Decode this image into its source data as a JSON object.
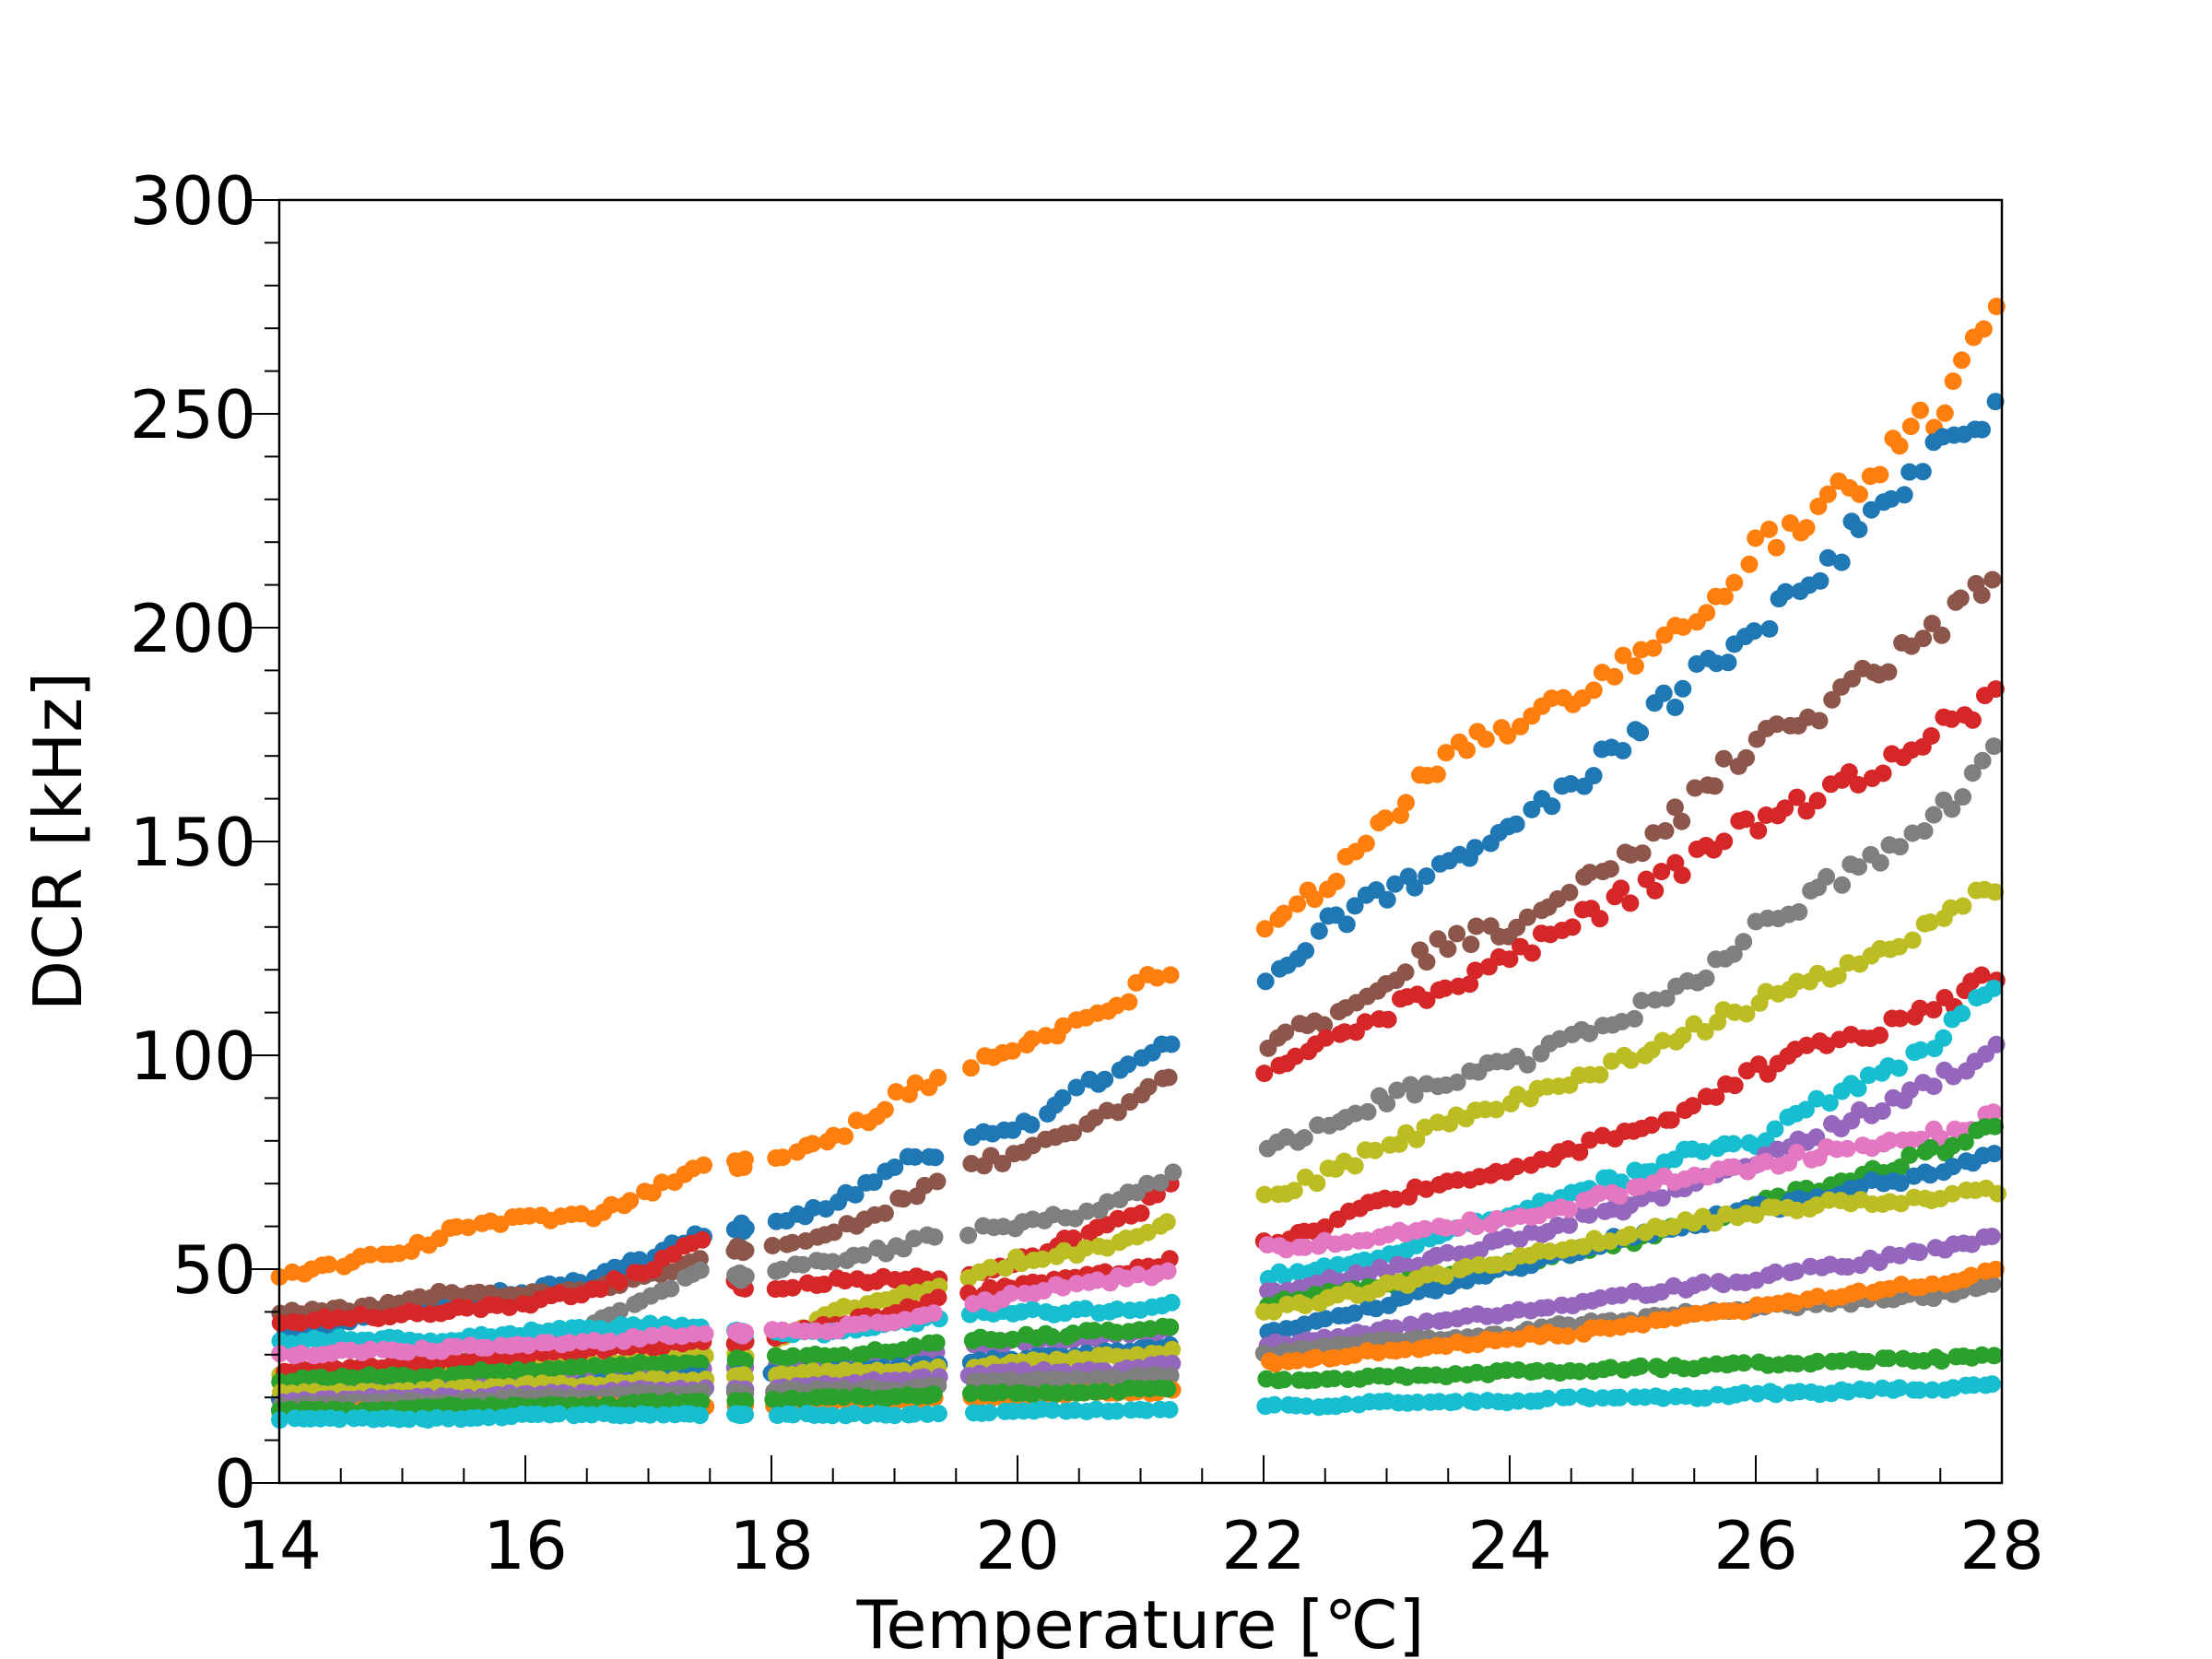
{
  "chart_data": {
    "type": "scatter",
    "title": "",
    "xlabel": "Temperature [℃]",
    "ylabel": "DCR [kHz]",
    "xlim": [
      14,
      28
    ],
    "ylim": [
      0,
      300
    ],
    "xticks": [
      "14",
      "16",
      "18",
      "20",
      "22",
      "24",
      "26",
      "28"
    ],
    "yticks": [
      "0",
      "50",
      "100",
      "150",
      "200",
      "250",
      "300"
    ],
    "x_minor_step": 0.5,
    "y_minor_step": 10,
    "grid": false,
    "legend": "none",
    "temperature_groups": [
      [
        14.0,
        14.8
      ],
      [
        14.8,
        15.6
      ],
      [
        15.6,
        16.6
      ],
      [
        16.6,
        17.5
      ],
      [
        17.7,
        17.8
      ],
      [
        18.0,
        19.4
      ],
      [
        19.6,
        21.3
      ],
      [
        22.0,
        23.8
      ],
      [
        23.8,
        28.0
      ]
    ],
    "series": [
      {
        "color": "#ff7f0e",
        "x": [
          14.1,
          15.0,
          15.5,
          16.0,
          16.5,
          17.0,
          17.4,
          18.0,
          18.5,
          19.0,
          19.4,
          20.0,
          20.5,
          21.0,
          21.3,
          22.0,
          22.5,
          23.0,
          23.5,
          24.0,
          24.5,
          25.0,
          25.5,
          26.0,
          26.5,
          27.0,
          27.5,
          28.0
        ],
        "y": [
          49,
          54,
          60,
          62,
          62,
          68,
          73,
          76,
          80,
          90,
          95,
          102,
          108,
          116,
          122,
          131,
          140,
          155,
          170,
          176,
          185,
          193,
          203,
          218,
          228,
          238,
          252,
          276
        ]
      },
      {
        "color": "#1f77b4",
        "x": [
          14.1,
          14.8,
          15.2,
          15.6,
          16.0,
          16.5,
          17.0,
          17.4,
          17.8,
          18.5,
          19.0,
          19.4,
          20.0,
          20.5,
          21.0,
          21.3,
          22.0,
          22.5,
          23.0,
          23.5,
          24.0,
          24.5,
          25.0,
          25.5,
          26.0,
          26.5,
          27.0,
          27.5,
          28.0
        ],
        "y": [
          35,
          39,
          42,
          44,
          45,
          48,
          53,
          58,
          60,
          65,
          74,
          78,
          83,
          92,
          100,
          105,
          117,
          130,
          138,
          144,
          152,
          163,
          175,
          188,
          199,
          213,
          228,
          241,
          253
        ]
      },
      {
        "color": "#8c564b",
        "x": [
          14.1,
          14.8,
          15.2,
          15.6,
          16.0,
          16.5,
          17.0,
          17.4,
          17.8,
          18.5,
          19.0,
          19.4,
          20.0,
          20.5,
          21.0,
          21.3,
          22.0,
          22.5,
          23.0,
          23.5,
          24.0,
          24.5,
          25.0,
          25.5,
          26.0,
          26.5,
          27.0,
          27.5,
          28.0
        ],
        "y": [
          40,
          41,
          44,
          44,
          44,
          45,
          48,
          52,
          55,
          58,
          65,
          72,
          77,
          82,
          90,
          95,
          103,
          108,
          118,
          127,
          130,
          138,
          146,
          160,
          174,
          181,
          191,
          201,
          213
        ]
      },
      {
        "color": "#d62728",
        "x": [
          14.1,
          14.8,
          15.2,
          15.6,
          16.0,
          16.5,
          17.0,
          17.4,
          17.8,
          18.5,
          19.0,
          19.4,
          20.0,
          20.5,
          21.0,
          21.3,
          22.0,
          22.5,
          23.0,
          23.5,
          24.0,
          24.5,
          25.0,
          25.5,
          26.0,
          26.5,
          27.0,
          27.5,
          28.0
        ],
        "y": [
          38,
          39,
          40,
          41,
          42,
          45,
          50,
          57,
          45,
          47,
          48,
          48,
          52,
          58,
          64,
          72,
          96,
          103,
          110,
          116,
          123,
          131,
          138,
          146,
          155,
          160,
          168,
          176,
          186
        ]
      },
      {
        "color": "#7f7f7f",
        "x": [
          14.1,
          14.8,
          15.2,
          15.6,
          16.0,
          16.5,
          17.0,
          17.4,
          17.8,
          18.5,
          19.0,
          19.4,
          20.0,
          20.5,
          21.0,
          21.3,
          22.0,
          22.5,
          23.0,
          23.5,
          24.0,
          24.5,
          25.0,
          25.5,
          26.0,
          26.5,
          27.0,
          27.5,
          28.0
        ],
        "y": [
          25,
          27,
          28,
          30,
          33,
          37,
          43,
          50,
          48,
          52,
          55,
          58,
          60,
          63,
          68,
          74,
          78,
          83,
          90,
          94,
          98,
          103,
          110,
          118,
          129,
          138,
          147,
          157,
          172
        ]
      },
      {
        "color": "#bcbd22",
        "x": [
          14.1,
          14.8,
          15.2,
          15.6,
          16.0,
          16.5,
          17.0,
          17.4,
          17.8,
          18.5,
          19.0,
          19.4,
          20.0,
          20.5,
          21.0,
          21.3,
          22.0,
          22.5,
          23.0,
          23.5,
          24.0,
          24.5,
          25.0,
          25.5,
          26.0,
          26.5,
          27.0,
          27.5,
          28.0
        ],
        "y": [
          25,
          26,
          27,
          27,
          27,
          28,
          29,
          30,
          30,
          40,
          44,
          46,
          52,
          54,
          58,
          62,
          67,
          72,
          79,
          84,
          89,
          94,
          100,
          106,
          112,
          118,
          124,
          131,
          140
        ]
      },
      {
        "color": "#d62728",
        "x": [
          14.1,
          14.8,
          15.2,
          15.6,
          16.0,
          16.5,
          17.0,
          17.4,
          17.8,
          18.5,
          19.0,
          19.4,
          20.0,
          20.5,
          21.0,
          21.3,
          22.0,
          22.5,
          23.0,
          23.5,
          24.0,
          24.5,
          25.0,
          25.5,
          26.0,
          26.5,
          27.0,
          27.5,
          28.0
        ],
        "y": [
          26,
          27,
          28,
          29,
          30,
          31,
          32,
          33,
          33,
          37,
          40,
          43,
          46,
          48,
          50,
          52,
          56,
          60,
          67,
          70,
          74,
          78,
          82,
          88,
          96,
          102,
          106,
          111,
          120
        ]
      },
      {
        "color": "#17becf",
        "x": [
          14.1,
          14.8,
          15.2,
          15.6,
          16.0,
          16.5,
          17.0,
          17.4,
          17.8,
          18.5,
          19.0,
          19.4,
          20.0,
          20.5,
          21.0,
          21.3,
          22.0,
          22.5,
          23.0,
          23.5,
          24.0,
          24.5,
          25.0,
          25.5,
          26.0,
          26.5,
          27.0,
          27.5,
          28.0
        ],
        "y": [
          33,
          34,
          33,
          34,
          35,
          36,
          37,
          36,
          35,
          35,
          37,
          39,
          40,
          40,
          41,
          42,
          48,
          50,
          53,
          58,
          63,
          68,
          72,
          78,
          79,
          89,
          96,
          104,
          118
        ]
      },
      {
        "color": "#9467bd",
        "x": [
          14.1,
          14.8,
          15.2,
          15.6,
          16.0,
          16.5,
          17.0,
          17.4,
          17.8,
          18.5,
          19.0,
          19.4,
          20.0,
          20.5,
          21.0,
          21.3,
          22.0,
          22.5,
          23.0,
          23.5,
          24.0,
          24.5,
          25.0,
          25.5,
          26.0,
          26.5,
          27.0,
          27.5,
          28.0
        ],
        "y": [
          22,
          23,
          23,
          24,
          24,
          25,
          26,
          27,
          27,
          28,
          30,
          31,
          33,
          34,
          35,
          36,
          45,
          47,
          50,
          53,
          57,
          61,
          65,
          70,
          75,
          82,
          88,
          95,
          102
        ]
      },
      {
        "color": "#e377c2",
        "x": [
          14.1,
          14.8,
          15.2,
          15.6,
          16.0,
          16.5,
          17.0,
          17.4,
          17.8,
          18.5,
          19.0,
          19.4,
          20.0,
          20.5,
          21.0,
          21.3,
          22.0,
          22.5,
          23.0,
          23.5,
          24.0,
          24.5,
          25.0,
          25.5,
          26.0,
          26.5,
          27.0,
          27.5,
          28.0
        ],
        "y": [
          30,
          31,
          31,
          32,
          32,
          33,
          34,
          35,
          35,
          36,
          38,
          40,
          44,
          47,
          48,
          50,
          55,
          56,
          58,
          60,
          62,
          65,
          69,
          72,
          74,
          77,
          79,
          82,
          86
        ]
      },
      {
        "color": "#2ca02c",
        "x": [
          14.1,
          14.8,
          15.2,
          15.6,
          16.0,
          16.5,
          17.0,
          17.4,
          17.8,
          18.5,
          19.0,
          19.4,
          20.0,
          20.5,
          21.0,
          21.3,
          22.0,
          22.5,
          23.0,
          23.5,
          24.0,
          24.5,
          25.0,
          25.5,
          26.0,
          26.5,
          27.0,
          27.5,
          28.0
        ],
        "y": [
          24,
          25,
          25,
          26,
          26,
          27,
          28,
          28,
          29,
          30,
          31,
          33,
          34,
          35,
          36,
          37,
          42,
          44,
          46,
          48,
          51,
          54,
          57,
          61,
          65,
          69,
          73,
          78,
          84
        ]
      },
      {
        "color": "#1f77b4",
        "x": [
          14.1,
          14.8,
          15.2,
          15.6,
          16.0,
          16.5,
          17.0,
          17.4,
          17.8,
          18.5,
          19.0,
          19.4,
          20.0,
          20.5,
          21.0,
          21.3,
          22.0,
          22.5,
          23.0,
          23.5,
          24.0,
          24.5,
          25.0,
          25.5,
          26.0,
          26.5,
          27.0,
          27.5,
          28.0
        ],
        "y": [
          20,
          21,
          21,
          22,
          22,
          23,
          24,
          25,
          25,
          26,
          27,
          28,
          29,
          30,
          31,
          32,
          35,
          38,
          42,
          46,
          50,
          54,
          58,
          61,
          64,
          67,
          70,
          73,
          77
        ]
      },
      {
        "color": "#bcbd22",
        "x": [
          14.1,
          14.8,
          15.2,
          15.6,
          16.0,
          16.5,
          17.0,
          17.4,
          17.8,
          18.5,
          19.0,
          19.4,
          20.0,
          20.5,
          21.0,
          21.3,
          22.0,
          22.5,
          23.0,
          23.5,
          24.0,
          24.5,
          25.0,
          25.5,
          26.0,
          26.5,
          27.0,
          27.5,
          28.0
        ],
        "y": [
          21,
          21,
          22,
          22,
          23,
          23,
          24,
          24,
          25,
          26,
          26,
          27,
          28,
          29,
          30,
          31,
          40,
          43,
          46,
          49,
          52,
          55,
          58,
          61,
          63,
          65,
          66,
          67,
          68
        ]
      },
      {
        "color": "#9467bd",
        "x": [
          14.1,
          14.8,
          15.2,
          15.6,
          16.0,
          16.5,
          17.0,
          17.4,
          17.8,
          18.5,
          19.0,
          19.4,
          20.0,
          20.5,
          21.0,
          21.3,
          22.0,
          22.5,
          23.0,
          23.5,
          24.0,
          24.5,
          25.0,
          25.5,
          26.0,
          26.5,
          27.0,
          27.5,
          28.0
        ],
        "y": [
          19,
          20,
          20,
          20,
          21,
          21,
          22,
          22,
          22,
          23,
          24,
          25,
          26,
          26,
          27,
          28,
          32,
          34,
          36,
          38,
          40,
          42,
          44,
          46,
          48,
          50,
          52,
          55,
          58
        ]
      },
      {
        "color": "#7f7f7f",
        "x": [
          14.1,
          14.8,
          15.2,
          15.6,
          16.0,
          16.5,
          17.0,
          17.4,
          17.8,
          18.5,
          19.0,
          19.4,
          20.0,
          20.5,
          21.0,
          21.3,
          22.0,
          22.5,
          23.0,
          23.5,
          24.0,
          24.5,
          25.0,
          25.5,
          26.0,
          26.5,
          27.0,
          27.5,
          28.0
        ],
        "y": [
          18,
          19,
          19,
          19,
          20,
          20,
          21,
          21,
          21,
          22,
          22,
          23,
          24,
          24,
          25,
          25,
          30,
          32,
          33,
          34,
          35,
          37,
          38,
          40,
          41,
          42,
          43,
          44,
          46
        ]
      },
      {
        "color": "#ff7f0e",
        "x": [
          14.1,
          14.8,
          15.2,
          15.6,
          16.0,
          16.5,
          17.0,
          17.4,
          17.8,
          18.5,
          19.0,
          19.4,
          20.0,
          20.5,
          21.0,
          21.3,
          22.0,
          22.5,
          23.0,
          23.5,
          24.0,
          24.5,
          25.0,
          25.5,
          26.0,
          26.5,
          27.0,
          27.5,
          28.0
        ],
        "y": [
          16,
          17,
          17,
          17,
          17,
          18,
          18,
          18,
          18,
          19,
          19,
          20,
          20,
          21,
          21,
          22,
          28,
          29,
          31,
          32,
          34,
          35,
          37,
          39,
          41,
          43,
          45,
          47,
          50
        ]
      },
      {
        "color": "#2ca02c",
        "x": [
          14.1,
          14.8,
          15.2,
          15.6,
          16.0,
          16.5,
          17.0,
          17.4,
          17.8,
          18.5,
          19.0,
          19.4,
          20.0,
          20.5,
          21.0,
          21.3,
          22.0,
          22.5,
          23.0,
          23.5,
          24.0,
          24.5,
          25.0,
          25.5,
          26.0,
          26.5,
          27.0,
          27.5,
          28.0
        ],
        "y": [
          17,
          17,
          18,
          18,
          18,
          18,
          19,
          19,
          19,
          20,
          20,
          21,
          21,
          21,
          22,
          22,
          24,
          24,
          25,
          25,
          26,
          26,
          27,
          27,
          28,
          28,
          29,
          29,
          30
        ]
      },
      {
        "color": "#17becf",
        "x": [
          14.1,
          14.8,
          15.2,
          15.6,
          16.0,
          16.5,
          17.0,
          17.4,
          17.8,
          18.5,
          19.0,
          19.4,
          20.0,
          20.5,
          21.0,
          21.3,
          22.0,
          22.5,
          23.0,
          23.5,
          24.0,
          24.5,
          25.0,
          25.5,
          26.0,
          26.5,
          27.0,
          27.5,
          28.0
        ],
        "y": [
          15,
          15,
          15,
          15,
          16,
          16,
          16,
          16,
          16,
          16,
          16,
          16,
          17,
          17,
          17,
          17,
          18,
          18,
          19,
          19,
          19,
          20,
          20,
          20,
          21,
          21,
          22,
          22,
          23
        ]
      }
    ]
  }
}
